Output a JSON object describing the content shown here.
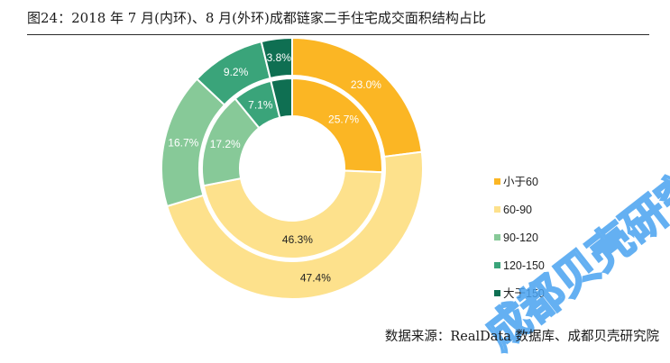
{
  "header": {
    "title": "图24：2018 年 7 月(内环)、8 月(外环)成都链家二手住宅成交面积结构占比"
  },
  "footer": {
    "source": "数据来源：RealData 数据库、成都贝壳研究院"
  },
  "watermark": {
    "text": "成都贝壳研究院",
    "color": "#4aa3f0"
  },
  "chart_data": {
    "type": "pie",
    "subtype": "donut",
    "title": "2018 年 7 月(内环)、8 月(外环)成都链家二手住宅成交面积结构占比",
    "categories": [
      "小于60",
      "60-90",
      "90-120",
      "120-150",
      "大于150"
    ],
    "colors": [
      "#fbb624",
      "#fde18c",
      "#87c998",
      "#3aa47a",
      "#0f6f52"
    ],
    "series": [
      {
        "ring": "inner",
        "values": [
          25.7,
          46.3,
          17.2,
          7.1,
          3.8
        ],
        "labels": [
          "25.7%",
          "46.3%",
          "17.2%",
          "7.1%",
          ""
        ]
      },
      {
        "ring": "outer",
        "values": [
          23.0,
          47.4,
          16.7,
          9.2,
          3.8
        ],
        "labels": [
          "23.0%",
          "47.4%",
          "16.7%",
          "9.2%",
          "3.8%"
        ]
      }
    ],
    "legend": {
      "position": "right",
      "entries": [
        "小于60",
        "60-90",
        "90-120",
        "120-150",
        "大于150"
      ]
    }
  }
}
